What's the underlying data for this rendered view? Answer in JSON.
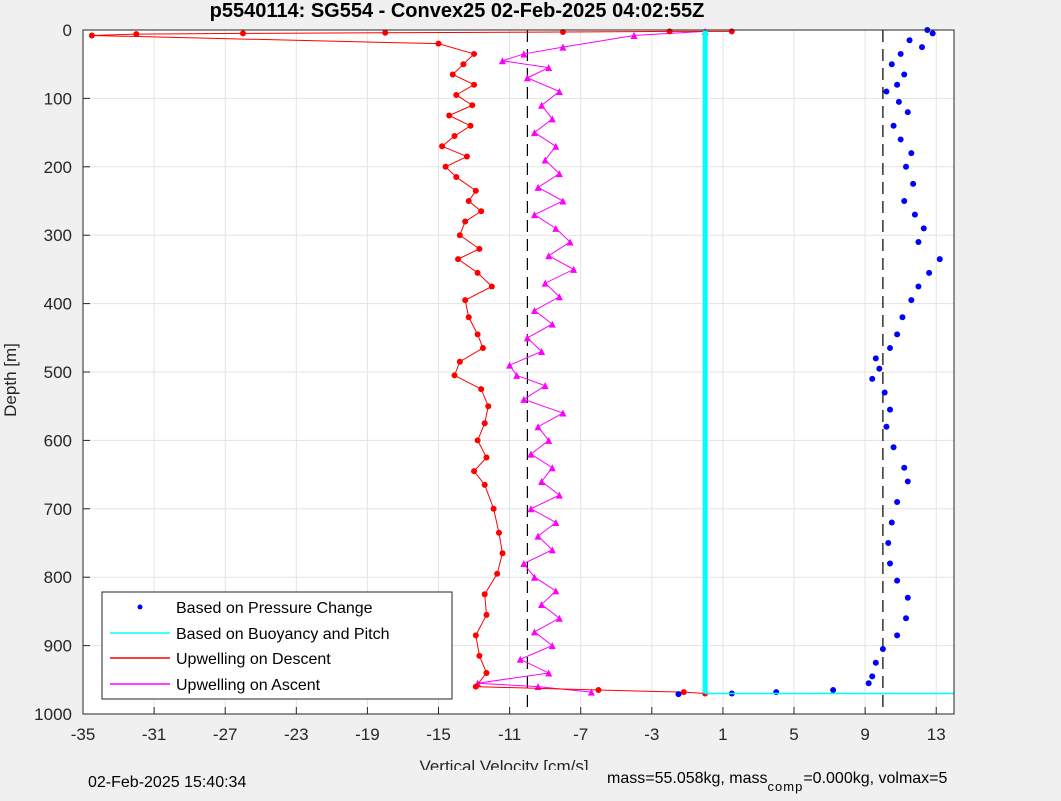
{
  "chart_data": {
    "type": "scatter",
    "title": "p5540114: SG554 - Convex25 02-Feb-2025 04:02:55Z",
    "xlabel": "Vertical Velocity [cm/s]",
    "ylabel": "Depth [m]",
    "xlim": [
      -35,
      14
    ],
    "ylim": [
      0,
      1000
    ],
    "y_reversed": true,
    "grid": true,
    "xticks": [
      "-35",
      "-31",
      "-27",
      "-23",
      "-19",
      "-15",
      "-11",
      "-7",
      "-3",
      "1",
      "5",
      "9",
      "13"
    ],
    "xtick_values": [
      -35,
      -31,
      -27,
      -23,
      -19,
      -15,
      -11,
      -7,
      -3,
      1,
      5,
      9,
      13
    ],
    "yticks": [
      "0",
      "100",
      "200",
      "300",
      "400",
      "500",
      "600",
      "700",
      "800",
      "900",
      "1000"
    ],
    "ytick_values": [
      0,
      100,
      200,
      300,
      400,
      500,
      600,
      700,
      800,
      900,
      1000
    ],
    "legend_position": "bottom-left",
    "reference_lines": [
      {
        "x": -10,
        "style": "dashed",
        "color": "#000000"
      },
      {
        "x": 10,
        "style": "dashed",
        "color": "#000000"
      }
    ],
    "series": [
      {
        "name": "Based on Pressure Change",
        "color": "#0000ff",
        "marker": "dot",
        "points": [
          [
            12.5,
            0
          ],
          [
            12.8,
            5
          ],
          [
            11.5,
            15
          ],
          [
            12.2,
            25
          ],
          [
            11.0,
            35
          ],
          [
            10.5,
            50
          ],
          [
            11.2,
            65
          ],
          [
            10.8,
            80
          ],
          [
            10.2,
            90
          ],
          [
            10.9,
            105
          ],
          [
            11.4,
            120
          ],
          [
            10.6,
            140
          ],
          [
            11.0,
            160
          ],
          [
            11.6,
            180
          ],
          [
            11.3,
            200
          ],
          [
            11.7,
            225
          ],
          [
            11.2,
            250
          ],
          [
            11.8,
            270
          ],
          [
            12.3,
            290
          ],
          [
            12.0,
            310
          ],
          [
            13.2,
            335
          ],
          [
            12.6,
            355
          ],
          [
            12.0,
            375
          ],
          [
            11.6,
            395
          ],
          [
            11.1,
            420
          ],
          [
            10.8,
            445
          ],
          [
            10.4,
            465
          ],
          [
            9.6,
            480
          ],
          [
            9.8,
            495
          ],
          [
            9.4,
            510
          ],
          [
            10.1,
            530
          ],
          [
            10.4,
            555
          ],
          [
            10.2,
            580
          ],
          [
            10.6,
            610
          ],
          [
            11.2,
            640
          ],
          [
            11.4,
            660
          ],
          [
            10.8,
            690
          ],
          [
            10.5,
            720
          ],
          [
            10.3,
            750
          ],
          [
            10.4,
            780
          ],
          [
            10.8,
            805
          ],
          [
            11.4,
            830
          ],
          [
            11.3,
            860
          ],
          [
            10.8,
            885
          ],
          [
            10.0,
            905
          ],
          [
            9.6,
            925
          ],
          [
            9.4,
            945
          ],
          [
            9.2,
            955
          ],
          [
            7.2,
            965
          ],
          [
            4.0,
            968
          ],
          [
            1.5,
            970
          ],
          [
            -1.5,
            971
          ]
        ]
      },
      {
        "name": "Based on Buoyancy and Pitch",
        "color": "#00ffff",
        "marker": "line",
        "points": [
          [
            0.0,
            0
          ],
          [
            0.0,
            100
          ],
          [
            0.0,
            200
          ],
          [
            0.0,
            300
          ],
          [
            0.0,
            400
          ],
          [
            0.0,
            500
          ],
          [
            0.0,
            600
          ],
          [
            0.0,
            700
          ],
          [
            0.0,
            800
          ],
          [
            0.0,
            900
          ],
          [
            0.0,
            970
          ],
          [
            14.0,
            970
          ]
        ]
      },
      {
        "name": "Upwelling on Descent",
        "color": "#ff0000",
        "marker": "circle-line",
        "points": [
          [
            1.5,
            2
          ],
          [
            -2.0,
            2
          ],
          [
            -8.0,
            3
          ],
          [
            -18.0,
            4
          ],
          [
            -26.0,
            5
          ],
          [
            -32.0,
            6
          ],
          [
            -34.5,
            8
          ],
          [
            -15.0,
            20
          ],
          [
            -13.0,
            35
          ],
          [
            -13.6,
            50
          ],
          [
            -14.2,
            65
          ],
          [
            -13.0,
            80
          ],
          [
            -14.0,
            95
          ],
          [
            -13.1,
            110
          ],
          [
            -14.4,
            125
          ],
          [
            -13.2,
            140
          ],
          [
            -14.1,
            155
          ],
          [
            -14.8,
            170
          ],
          [
            -13.4,
            185
          ],
          [
            -14.6,
            200
          ],
          [
            -14.0,
            215
          ],
          [
            -12.9,
            235
          ],
          [
            -13.3,
            250
          ],
          [
            -12.6,
            265
          ],
          [
            -13.5,
            280
          ],
          [
            -13.8,
            300
          ],
          [
            -12.7,
            320
          ],
          [
            -13.9,
            335
          ],
          [
            -12.8,
            355
          ],
          [
            -12.0,
            375
          ],
          [
            -13.5,
            395
          ],
          [
            -13.3,
            420
          ],
          [
            -12.8,
            445
          ],
          [
            -12.5,
            465
          ],
          [
            -13.8,
            485
          ],
          [
            -14.1,
            505
          ],
          [
            -12.6,
            525
          ],
          [
            -12.2,
            550
          ],
          [
            -12.4,
            575
          ],
          [
            -12.8,
            600
          ],
          [
            -12.3,
            625
          ],
          [
            -13.0,
            645
          ],
          [
            -12.4,
            665
          ],
          [
            -11.9,
            700
          ],
          [
            -11.6,
            735
          ],
          [
            -11.4,
            765
          ],
          [
            -11.7,
            795
          ],
          [
            -12.4,
            825
          ],
          [
            -12.3,
            855
          ],
          [
            -12.9,
            885
          ],
          [
            -12.7,
            915
          ],
          [
            -12.3,
            940
          ],
          [
            -12.9,
            960
          ],
          [
            -6.0,
            965
          ],
          [
            -1.2,
            968
          ],
          [
            0.0,
            970
          ]
        ]
      },
      {
        "name": "Upwelling on Ascent",
        "color": "#ff00ff",
        "marker": "triangle-line",
        "points": [
          [
            -6.4,
            968
          ],
          [
            -9.4,
            960
          ],
          [
            -12.8,
            955
          ],
          [
            -8.8,
            940
          ],
          [
            -10.4,
            920
          ],
          [
            -8.6,
            900
          ],
          [
            -9.6,
            880
          ],
          [
            -8.2,
            860
          ],
          [
            -9.2,
            840
          ],
          [
            -8.4,
            820
          ],
          [
            -9.6,
            800
          ],
          [
            -10.2,
            780
          ],
          [
            -8.6,
            760
          ],
          [
            -9.4,
            740
          ],
          [
            -8.4,
            720
          ],
          [
            -9.8,
            700
          ],
          [
            -8.2,
            680
          ],
          [
            -9.2,
            660
          ],
          [
            -8.6,
            640
          ],
          [
            -9.8,
            620
          ],
          [
            -8.8,
            600
          ],
          [
            -9.4,
            580
          ],
          [
            -8.0,
            560
          ],
          [
            -10.2,
            540
          ],
          [
            -9.0,
            520
          ],
          [
            -10.6,
            505
          ],
          [
            -11.0,
            490
          ],
          [
            -9.2,
            470
          ],
          [
            -10.0,
            450
          ],
          [
            -8.6,
            430
          ],
          [
            -9.6,
            410
          ],
          [
            -8.2,
            390
          ],
          [
            -9.0,
            370
          ],
          [
            -7.4,
            350
          ],
          [
            -8.8,
            330
          ],
          [
            -7.6,
            310
          ],
          [
            -8.4,
            290
          ],
          [
            -9.6,
            270
          ],
          [
            -8.0,
            250
          ],
          [
            -9.4,
            230
          ],
          [
            -8.2,
            210
          ],
          [
            -9.0,
            190
          ],
          [
            -8.4,
            170
          ],
          [
            -9.6,
            150
          ],
          [
            -8.6,
            130
          ],
          [
            -9.2,
            110
          ],
          [
            -8.2,
            90
          ],
          [
            -10.0,
            70
          ],
          [
            -8.8,
            55
          ],
          [
            -11.4,
            45
          ],
          [
            -10.2,
            35
          ],
          [
            -8.0,
            25
          ],
          [
            -4.0,
            8
          ],
          [
            0.0,
            2
          ]
        ]
      }
    ]
  },
  "footer": {
    "timestamp": "02-Feb-2025 15:40:34",
    "mass_text": "mass=55.058kg, mass",
    "mass_comp_sub": "comp",
    "mass_comp_text": "=0.000kg, volmax=5"
  }
}
